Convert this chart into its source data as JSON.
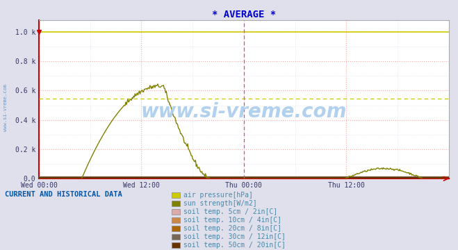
{
  "title": "* AVERAGE *",
  "title_color": "#0000cc",
  "bg_color": "#e0e0ec",
  "plot_bg_color": "#ffffff",
  "grid_color_major": "#ffaaaa",
  "grid_color_minor": "#ddddee",
  "yticks": [
    0.0,
    0.2,
    0.4,
    0.6,
    0.8,
    1.0
  ],
  "ytick_labels": [
    "0.0",
    "0.2 k",
    "0.4 k",
    "0.6 k",
    "0.8 k",
    "1.0 k"
  ],
  "ylim": [
    0.0,
    1.08
  ],
  "xlim": [
    0,
    576
  ],
  "xtick_positions": [
    0,
    144,
    288,
    432,
    576
  ],
  "xtick_labels": [
    "Wed 00:00",
    "Wed 12:00",
    "Thu 00:00",
    "Thu 12:00",
    ""
  ],
  "n_points": 577,
  "watermark": "www.si-vreme.com",
  "watermark_color": "#aaccee",
  "left_label": "www.si-vreme.com",
  "left_label_color": "#6699cc",
  "legend_title": "CURRENT AND HISTORICAL DATA",
  "legend_title_color": "#0055aa",
  "legend_items": [
    {
      "label": "air pressure[hPa]",
      "color": "#cccc00"
    },
    {
      "label": "sun strength[W/m2]",
      "color": "#808000"
    },
    {
      "label": "soil temp. 5cm / 2in[C]",
      "color": "#ddaaaa"
    },
    {
      "label": "soil temp. 10cm / 4in[C]",
      "color": "#cc8844"
    },
    {
      "label": "soil temp. 20cm / 8in[C]",
      "color": "#aa6600"
    },
    {
      "label": "soil temp. 30cm / 12in[C]",
      "color": "#776655"
    },
    {
      "label": "soil temp. 50cm / 20in[C]",
      "color": "#663300"
    }
  ],
  "air_pressure_color": "#cccc00",
  "air_pressure_dashed_value": 0.545,
  "sun_color": "#808000",
  "soil_colors": [
    "#ddaaaa",
    "#cc8844",
    "#aa6600",
    "#776655",
    "#663300"
  ],
  "soil_base_value": 0.012,
  "vertical_line_color": "#cc44cc",
  "border_color": "#cc0000",
  "right_border_color": "#aaaaaa",
  "tick_label_color": "#333366",
  "legend_label_color": "#4488aa"
}
